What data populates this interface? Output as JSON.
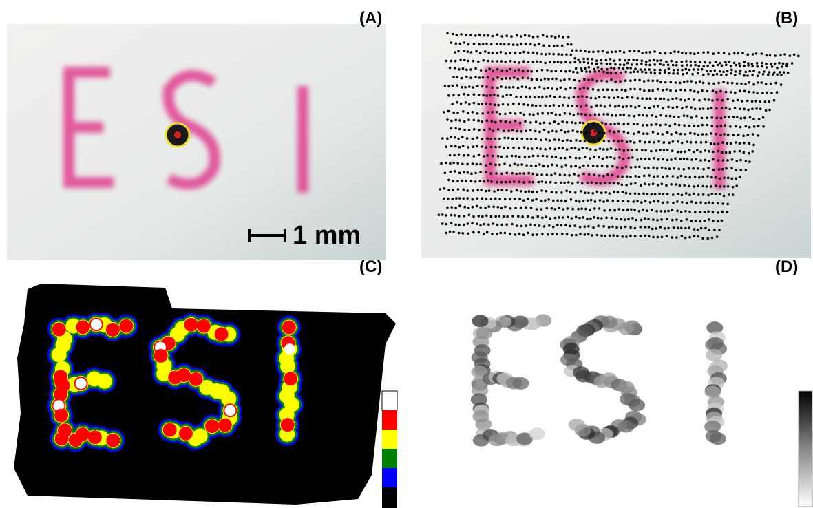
{
  "panels": [
    {
      "label": "(A)",
      "scale_bar": "1 mm"
    },
    {
      "label": "(B)"
    },
    {
      "label": "(C)"
    },
    {
      "label": "(D)"
    }
  ]
}
